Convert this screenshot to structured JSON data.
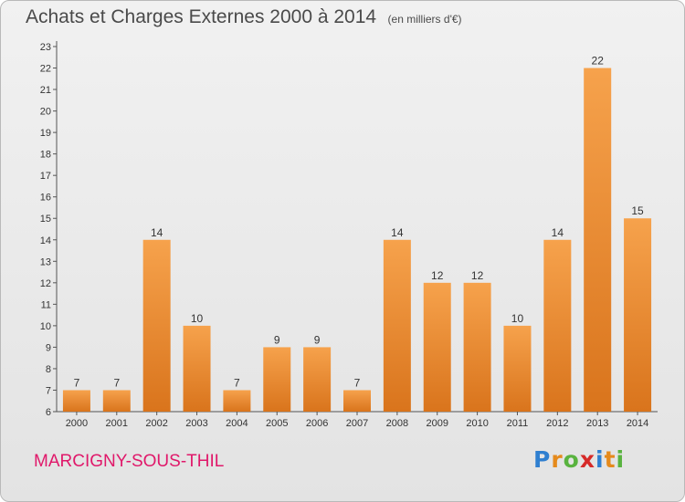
{
  "header": {
    "title": "Achats et Charges Externes 2000 à 2014",
    "subtitle": "(en milliers d'€)"
  },
  "footer": {
    "commune": "MARCIGNY-SOUS-THIL",
    "brand_letters": [
      {
        "ch": "P",
        "color": "#2f7fd0"
      },
      {
        "ch": "r",
        "color": "#e58a1c"
      },
      {
        "ch": "o",
        "color": "#59b33f"
      },
      {
        "ch": "x",
        "color": "#d62a28"
      },
      {
        "ch": "i",
        "color": "#2f7fd0"
      },
      {
        "ch": "t",
        "color": "#e58a1c"
      },
      {
        "ch": "i",
        "color": "#59b33f"
      }
    ]
  },
  "colors": {
    "bar_top": "#f6a24c",
    "bar_bottom": "#d9741c",
    "axis": "#555555",
    "grid": "#cccccc"
  },
  "chart_data": {
    "type": "bar",
    "title": "Achats et Charges Externes 2000 à 2014",
    "subtitle": "(en milliers d'€)",
    "categories": [
      "2000",
      "2001",
      "2002",
      "2003",
      "2004",
      "2005",
      "2006",
      "2007",
      "2008",
      "2009",
      "2010",
      "2011",
      "2012",
      "2013",
      "2014"
    ],
    "values": [
      7,
      7,
      14,
      10,
      7,
      9,
      9,
      7,
      14,
      12,
      12,
      10,
      14,
      22,
      15
    ],
    "ylim": [
      6,
      23
    ],
    "yticks": [
      6,
      7,
      8,
      9,
      10,
      11,
      12,
      13,
      14,
      15,
      16,
      17,
      18,
      19,
      20,
      21,
      22,
      23
    ],
    "grid": false,
    "data_labels": true
  }
}
